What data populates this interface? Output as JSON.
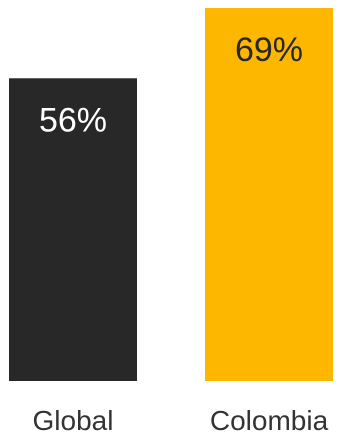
{
  "chart_data": {
    "type": "bar",
    "categories": [
      "Global",
      "Colombia"
    ],
    "values": [
      56,
      69
    ],
    "value_labels": [
      "56%",
      "69%"
    ],
    "ylim": [
      0,
      69
    ],
    "grid": false,
    "colors": {
      "bars": [
        "#282828",
        "#FDB700"
      ],
      "value_text": [
        "#ffffff",
        "#282828"
      ],
      "category_text": "#333333",
      "background": "#ffffff"
    }
  }
}
